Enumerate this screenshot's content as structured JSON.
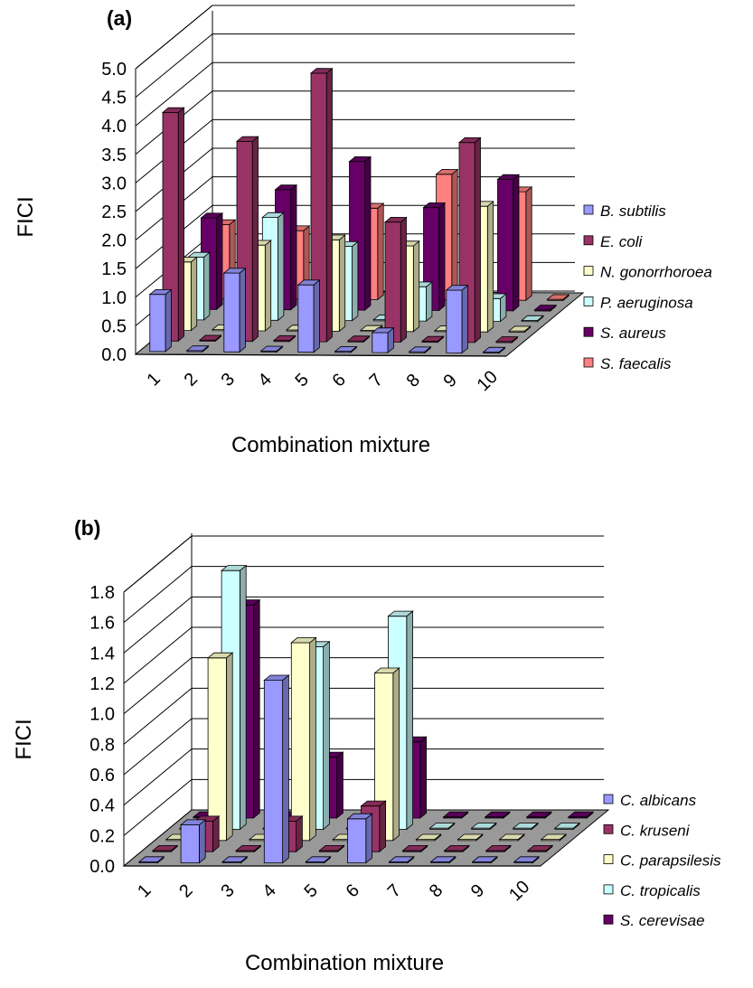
{
  "chart_data": [
    {
      "type": "bar",
      "panel_label": "(a)",
      "xlabel": "Combination mixture",
      "ylabel": "FICI",
      "ylim": [
        0,
        5
      ],
      "yticks": [
        "0.0",
        "0.5",
        "1.0",
        "1.5",
        "2.0",
        "2.5",
        "3.0",
        "3.5",
        "4.0",
        "4.5",
        "5.0"
      ],
      "categories": [
        "1",
        "2",
        "3",
        "4",
        "5",
        "6",
        "7",
        "8",
        "9",
        "10"
      ],
      "legend_position": "right",
      "series": [
        {
          "name": "B. subtilis",
          "color": "#9999ff",
          "values": [
            1.0,
            0,
            1.38,
            0,
            1.18,
            0,
            0.35,
            0,
            1.1,
            0
          ]
        },
        {
          "name": "E. coli",
          "color": "#993366",
          "values": [
            4.0,
            0,
            3.5,
            0,
            4.7,
            0,
            2.1,
            0,
            3.5,
            0
          ]
        },
        {
          "name": "N. gonorrhoroea",
          "color": "#ffffcc",
          "values": [
            1.2,
            0,
            1.5,
            0,
            1.6,
            0,
            1.5,
            0,
            2.2,
            0
          ]
        },
        {
          "name": "P. aeruginosa",
          "color": "#ccffff",
          "values": [
            1.1,
            0,
            1.8,
            0,
            1.3,
            0,
            0.6,
            0,
            0.4,
            0
          ]
        },
        {
          "name": "S. aureus",
          "color": "#660066",
          "values": [
            1.6,
            0,
            2.1,
            0,
            2.6,
            0,
            1.8,
            0,
            2.3,
            0
          ]
        },
        {
          "name": "S. faecalis",
          "color": "#ff8080",
          "values": [
            1.3,
            0,
            1.2,
            0,
            1.6,
            0,
            2.2,
            0,
            1.9,
            0
          ]
        }
      ]
    },
    {
      "type": "bar",
      "panel_label": "(b)",
      "xlabel": "Combination mixture",
      "ylabel": "FICI",
      "ylim": [
        0,
        1.8
      ],
      "yticks": [
        "0.0",
        "0.2",
        "0.4",
        "0.6",
        "0.8",
        "1.0",
        "1.2",
        "1.4",
        "1.6",
        "1.8"
      ],
      "categories": [
        "1",
        "2",
        "3",
        "4",
        "5",
        "6",
        "7",
        "8",
        "9",
        "10"
      ],
      "legend_position": "right",
      "series": [
        {
          "name": "C. albicans",
          "color": "#9999ff",
          "values": [
            0,
            0.25,
            0,
            1.2,
            0,
            0.29,
            0,
            0,
            0,
            0
          ]
        },
        {
          "name": "C. kruseni",
          "color": "#993366",
          "values": [
            0,
            0.2,
            0,
            0.2,
            0,
            0.3,
            0,
            0,
            0,
            0
          ]
        },
        {
          "name": "C. parapsilesis",
          "color": "#ffffcc",
          "values": [
            0,
            1.2,
            0,
            1.3,
            0,
            1.1,
            0,
            0,
            0,
            0
          ]
        },
        {
          "name": "C. tropicalis",
          "color": "#ccffff",
          "values": [
            0,
            1.7,
            0,
            1.2,
            0,
            1.4,
            0,
            0,
            0,
            0
          ]
        },
        {
          "name": "S. cerevisae",
          "color": "#660066",
          "values": [
            0,
            1.4,
            0,
            0.4,
            0,
            0.5,
            0,
            0,
            0,
            0
          ]
        }
      ]
    }
  ]
}
